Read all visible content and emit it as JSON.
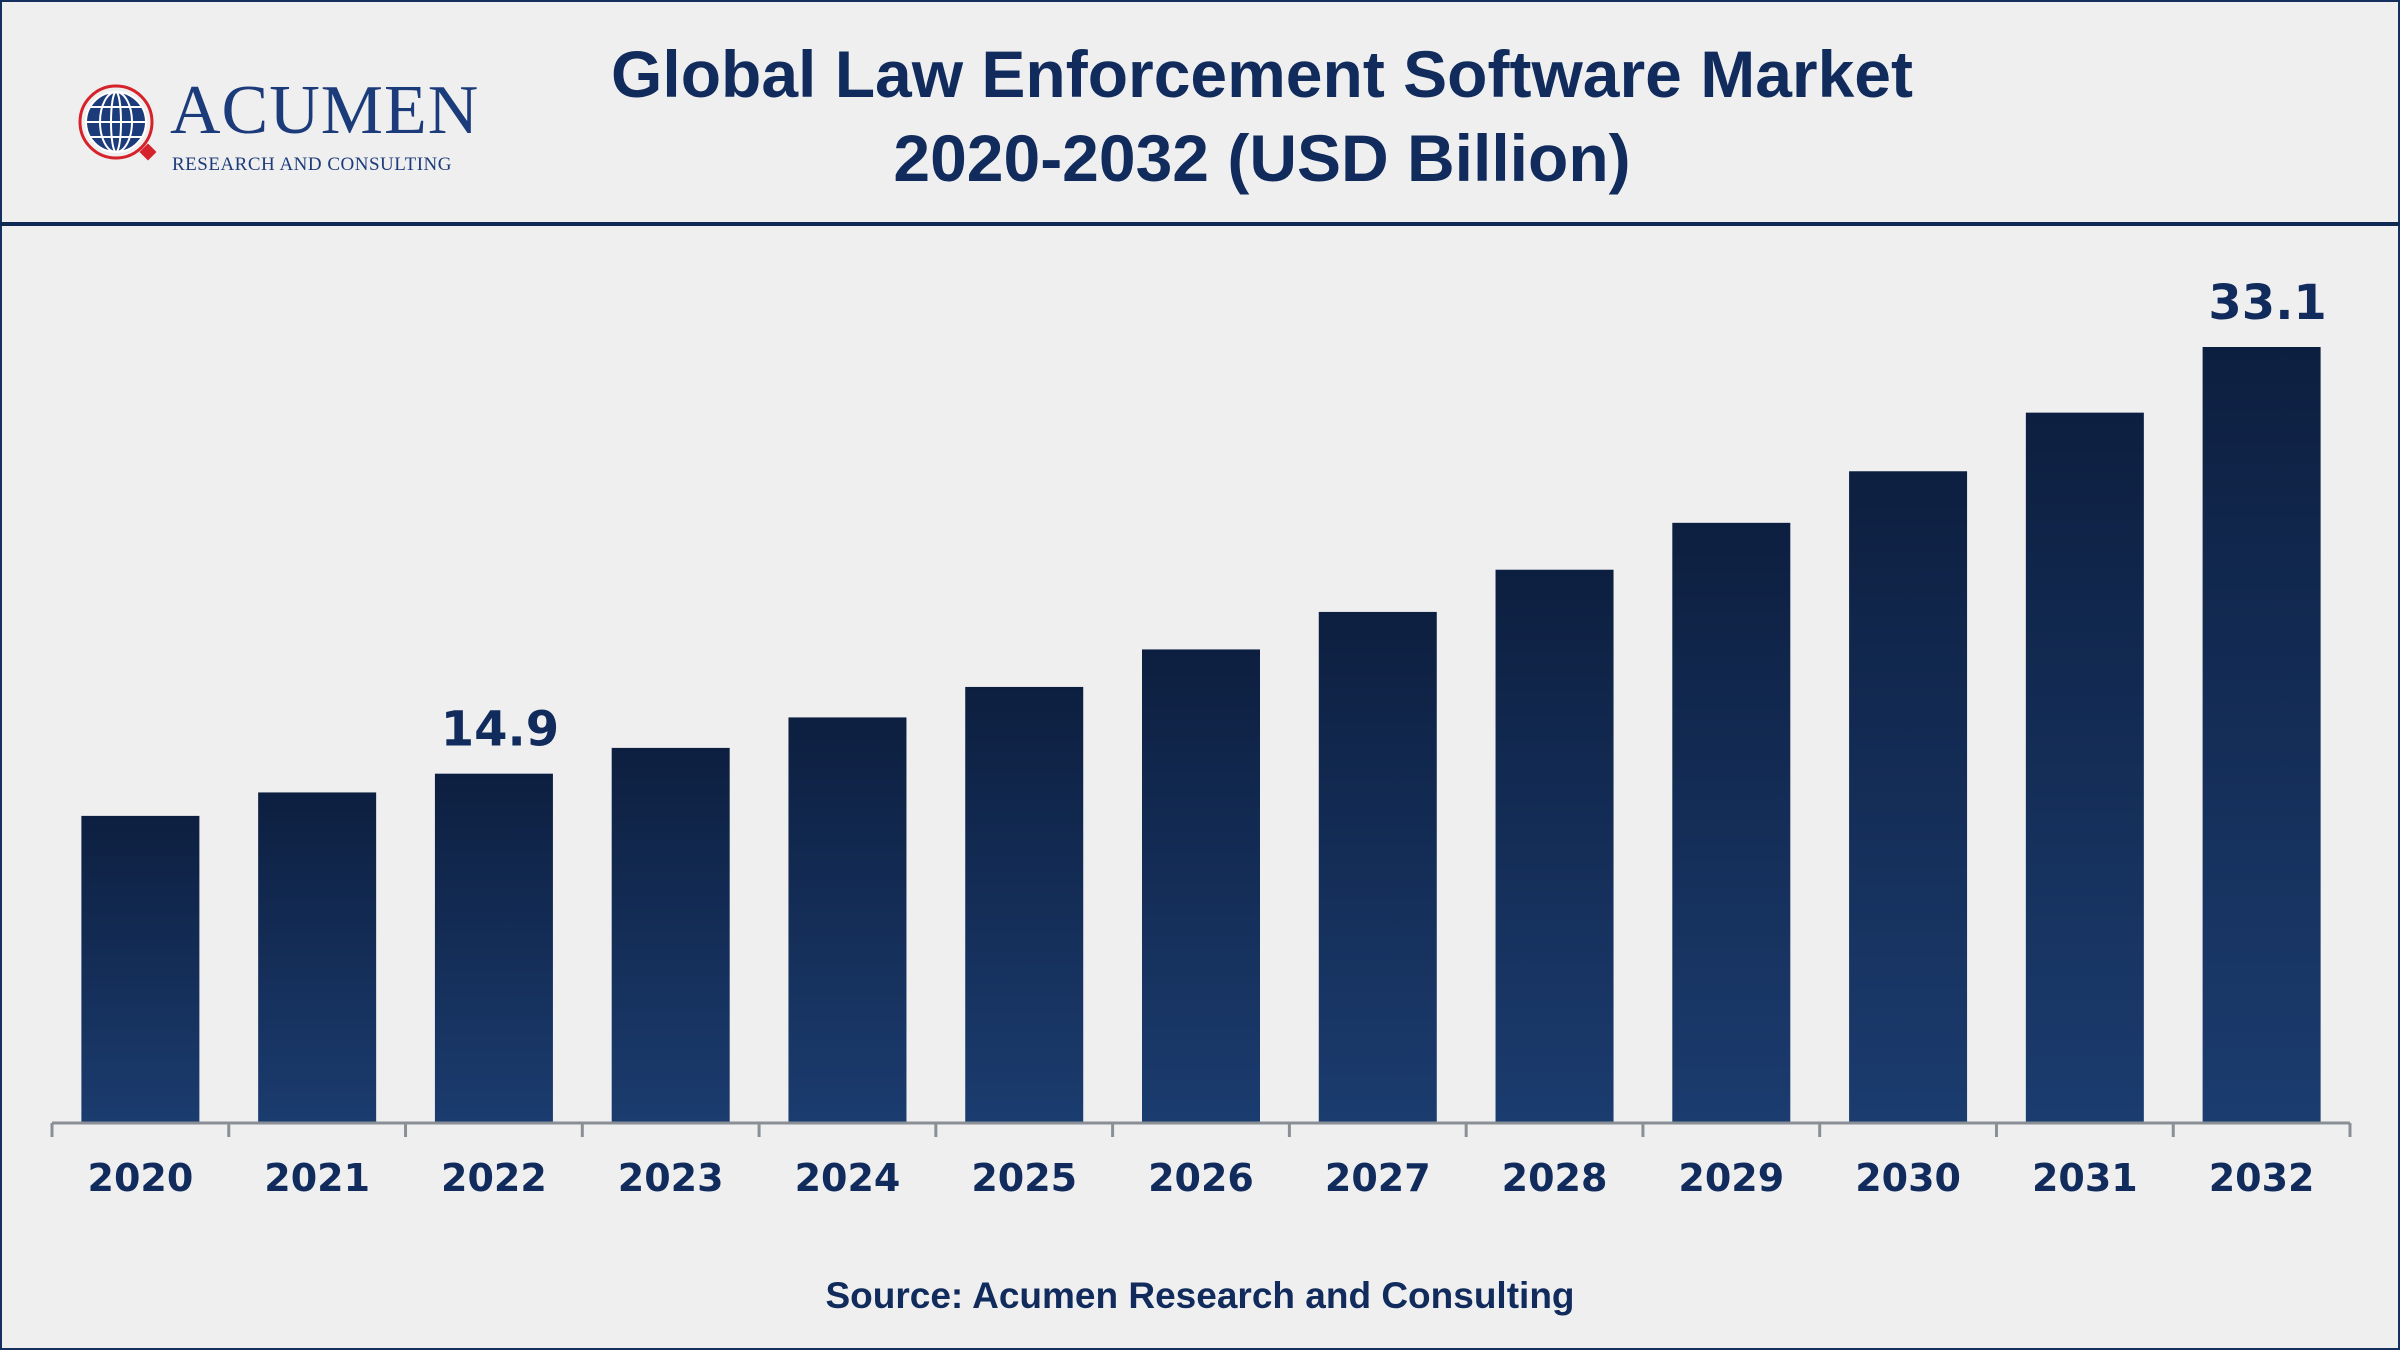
{
  "header": {
    "logo_word": "ACUMEN",
    "logo_sub": "RESEARCH AND CONSULTING",
    "title_line1": "Global Law Enforcement Software Market",
    "title_line2": "2020-2032 (USD Billion)"
  },
  "footer": {
    "source": "Source: Acumen Research and Consulting"
  },
  "colors": {
    "bar_top": "#0d1f40",
    "bar_bottom": "#1b3c6f",
    "text": "#102b5c",
    "axis": "#8a8f96",
    "accent": "#d6222a"
  },
  "chart_data": {
    "type": "bar",
    "categories": [
      "2020",
      "2021",
      "2022",
      "2023",
      "2024",
      "2025",
      "2026",
      "2027",
      "2028",
      "2029",
      "2030",
      "2031",
      "2032"
    ],
    "values": [
      13.1,
      14.1,
      14.9,
      16.0,
      17.3,
      18.6,
      20.2,
      21.8,
      23.6,
      25.6,
      27.8,
      30.3,
      33.1
    ],
    "data_labels": [
      {
        "index": 2,
        "text": "14.9"
      },
      {
        "index": 12,
        "text": "33.1"
      }
    ],
    "title": "Global Law Enforcement Software Market 2020-2032 (USD Billion)",
    "xlabel": "",
    "ylabel": "",
    "ylim": [
      0,
      40
    ],
    "grid": false,
    "legend": "none"
  }
}
